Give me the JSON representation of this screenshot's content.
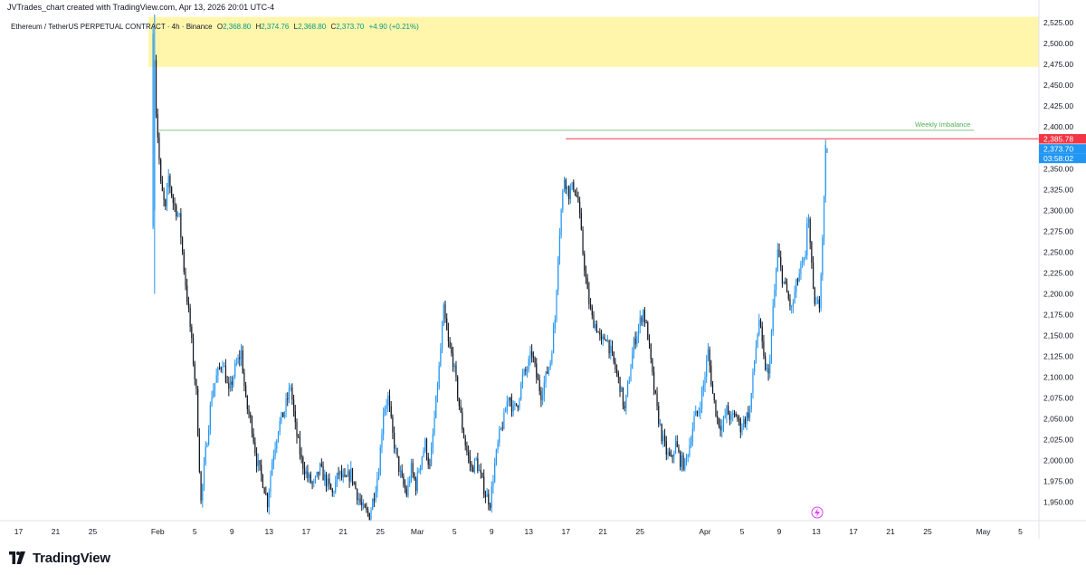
{
  "header": {
    "credit": "JVTrades_chart created with TradingView.com, Apr 13, 2026 20:01 UTC-4"
  },
  "legend": {
    "symbol": "Ethereum / TetherUS PERPETUAL CONTRACT · 4h · Binance",
    "open_label": "O",
    "open": "2,368.80",
    "high_label": "H",
    "high": "2,374.76",
    "low_label": "L",
    "low": "2,368.80",
    "close_label": "C",
    "close": "2,373.70",
    "change": "+4.90 (+0.21%)"
  },
  "footer": {
    "brand": "TradingView",
    "logo_icon": "tradingview-logo-icon",
    "lightning_icon": "lightning-icon"
  },
  "colors": {
    "up": "#2196F3",
    "down": "#131722",
    "zone": "#FFF59D",
    "imbalance": "#4CAF50",
    "level": "#F23645",
    "current": "#2196F3"
  },
  "chart_data": {
    "type": "candlestick",
    "price_axis": {
      "ylim": [
        1928,
        2537
      ],
      "ticks": [
        1950,
        1975,
        2000,
        2025,
        2050,
        2075,
        2100,
        2125,
        2150,
        2175,
        2200,
        2225,
        2250,
        2275,
        2300,
        2325,
        2350,
        2375,
        2400,
        2425,
        2450,
        2475,
        2500,
        2525
      ],
      "tick_labels": [
        "1,950.00",
        "1,975.00",
        "2,000.00",
        "2,025.00",
        "2,050.00",
        "2,075.00",
        "2,100.00",
        "2,125.00",
        "2,150.00",
        "2,175.00",
        "2,200.00",
        "2,225.00",
        "2,250.00",
        "2,275.00",
        "2,300.00",
        "2,325.00",
        "2,350.00",
        "2,375.00",
        "2,400.00",
        "2,425.00",
        "2,450.00",
        "2,475.00",
        "2,500.00",
        "2,525.00"
      ]
    },
    "time_axis": {
      "xlim": [
        "2026-01-15",
        "2026-05-07"
      ],
      "ticks": [
        {
          "date": "2026-01-17",
          "label": "17"
        },
        {
          "date": "2026-01-21",
          "label": "21"
        },
        {
          "date": "2026-01-25",
          "label": "25"
        },
        {
          "date": "2026-02-01",
          "label": "Feb"
        },
        {
          "date": "2026-02-05",
          "label": "5"
        },
        {
          "date": "2026-02-09",
          "label": "9"
        },
        {
          "date": "2026-02-13",
          "label": "13"
        },
        {
          "date": "2026-02-17",
          "label": "17"
        },
        {
          "date": "2026-02-21",
          "label": "21"
        },
        {
          "date": "2026-02-25",
          "label": "25"
        },
        {
          "date": "2026-03-01",
          "label": "Mar"
        },
        {
          "date": "2026-03-05",
          "label": "5"
        },
        {
          "date": "2026-03-09",
          "label": "9"
        },
        {
          "date": "2026-03-13",
          "label": "13"
        },
        {
          "date": "2026-03-17",
          "label": "17"
        },
        {
          "date": "2026-03-21",
          "label": "21"
        },
        {
          "date": "2026-03-25",
          "label": "25"
        },
        {
          "date": "2026-04-01",
          "label": "Apr"
        },
        {
          "date": "2026-04-05",
          "label": "5"
        },
        {
          "date": "2026-04-09",
          "label": "9"
        },
        {
          "date": "2026-04-13",
          "label": "13"
        },
        {
          "date": "2026-04-17",
          "label": "17"
        },
        {
          "date": "2026-04-21",
          "label": "21"
        },
        {
          "date": "2026-04-25",
          "label": "25"
        },
        {
          "date": "2026-05-01",
          "label": "May"
        },
        {
          "date": "2026-05-05",
          "label": "5"
        }
      ]
    },
    "first_candle": "2026-01-31T12:00",
    "candle_hours": 4,
    "price_path": [
      [
        "2026-01-31T12:00",
        2280
      ],
      [
        "2026-01-31T16:00",
        2520
      ],
      [
        "2026-02-01T00:00",
        2420
      ],
      [
        "2026-02-01T12:00",
        2330
      ],
      [
        "2026-02-02T00:00",
        2300
      ],
      [
        "2026-02-02T08:00",
        2340
      ],
      [
        "2026-02-02T20:00",
        2310
      ],
      [
        "2026-02-03T12:00",
        2290
      ],
      [
        "2026-02-04T00:00",
        2230
      ],
      [
        "2026-02-04T16:00",
        2160
      ],
      [
        "2026-02-05T08:00",
        2080
      ],
      [
        "2026-02-05T20:00",
        1950
      ],
      [
        "2026-02-06T08:00",
        2010
      ],
      [
        "2026-02-07T00:00",
        2080
      ],
      [
        "2026-02-07T12:00",
        2100
      ],
      [
        "2026-02-08T04:00",
        2120
      ],
      [
        "2026-02-08T20:00",
        2080
      ],
      [
        "2026-02-09T12:00",
        2110
      ],
      [
        "2026-02-10T04:00",
        2130
      ],
      [
        "2026-02-10T16:00",
        2070
      ],
      [
        "2026-02-11T08:00",
        2040
      ],
      [
        "2026-02-11T20:00",
        2000
      ],
      [
        "2026-02-12T12:00",
        1975
      ],
      [
        "2026-02-13T00:00",
        1950
      ],
      [
        "2026-02-13T12:00",
        2000
      ],
      [
        "2026-02-14T04:00",
        2040
      ],
      [
        "2026-02-14T20:00",
        2060
      ],
      [
        "2026-02-15T12:00",
        2090
      ],
      [
        "2026-02-16T00:00",
        2040
      ],
      [
        "2026-02-16T16:00",
        2000
      ],
      [
        "2026-02-17T08:00",
        1980
      ],
      [
        "2026-02-18T00:00",
        1970
      ],
      [
        "2026-02-18T16:00",
        1990
      ],
      [
        "2026-02-19T08:00",
        1975
      ],
      [
        "2026-02-20T00:00",
        1960
      ],
      [
        "2026-02-20T16:00",
        1985
      ],
      [
        "2026-02-21T08:00",
        1975
      ],
      [
        "2026-02-22T00:00",
        1985
      ],
      [
        "2026-02-22T16:00",
        1960
      ],
      [
        "2026-02-23T08:00",
        1940
      ],
      [
        "2026-02-24T00:00",
        1935
      ],
      [
        "2026-02-24T12:00",
        1960
      ],
      [
        "2026-02-25T00:00",
        1990
      ],
      [
        "2026-02-25T12:00",
        2060
      ],
      [
        "2026-02-26T00:00",
        2075
      ],
      [
        "2026-02-26T12:00",
        2030
      ],
      [
        "2026-02-27T00:00",
        2000
      ],
      [
        "2026-02-27T12:00",
        1975
      ],
      [
        "2026-02-28T00:00",
        1960
      ],
      [
        "2026-02-28T12:00",
        1990
      ],
      [
        "2026-03-01T00:00",
        1970
      ],
      [
        "2026-03-01T12:00",
        2000
      ],
      [
        "2026-03-02T00:00",
        2020
      ],
      [
        "2026-03-02T12:00",
        1990
      ],
      [
        "2026-03-03T00:00",
        2050
      ],
      [
        "2026-03-03T12:00",
        2110
      ],
      [
        "2026-03-04T00:00",
        2180
      ],
      [
        "2026-03-04T12:00",
        2140
      ],
      [
        "2026-03-05T00:00",
        2120
      ],
      [
        "2026-03-05T12:00",
        2080
      ],
      [
        "2026-03-06T00:00",
        2040
      ],
      [
        "2026-03-06T12:00",
        2010
      ],
      [
        "2026-03-07T00:00",
        1990
      ],
      [
        "2026-03-07T12:00",
        2000
      ],
      [
        "2026-03-08T00:00",
        1980
      ],
      [
        "2026-03-08T12:00",
        1960
      ],
      [
        "2026-03-09T00:00",
        1950
      ],
      [
        "2026-03-09T12:00",
        1995
      ],
      [
        "2026-03-10T00:00",
        2030
      ],
      [
        "2026-03-10T12:00",
        2050
      ],
      [
        "2026-03-11T00:00",
        2080
      ],
      [
        "2026-03-11T12:00",
        2060
      ],
      [
        "2026-03-12T00:00",
        2070
      ],
      [
        "2026-03-12T12:00",
        2100
      ],
      [
        "2026-03-13T00:00",
        2110
      ],
      [
        "2026-03-13T12:00",
        2130
      ],
      [
        "2026-03-14T00:00",
        2100
      ],
      [
        "2026-03-14T12:00",
        2080
      ],
      [
        "2026-03-15T00:00",
        2100
      ],
      [
        "2026-03-15T12:00",
        2120
      ],
      [
        "2026-03-16T00:00",
        2170
      ],
      [
        "2026-03-16T08:00",
        2250
      ],
      [
        "2026-03-16T16:00",
        2300
      ],
      [
        "2026-03-17T00:00",
        2340
      ],
      [
        "2026-03-17T12:00",
        2320
      ],
      [
        "2026-03-18T00:00",
        2330
      ],
      [
        "2026-03-18T12:00",
        2310
      ],
      [
        "2026-03-19T00:00",
        2250
      ],
      [
        "2026-03-19T12:00",
        2200
      ],
      [
        "2026-03-20T00:00",
        2170
      ],
      [
        "2026-03-20T12:00",
        2160
      ],
      [
        "2026-03-21T00:00",
        2140
      ],
      [
        "2026-03-21T12:00",
        2150
      ],
      [
        "2026-03-22T00:00",
        2130
      ],
      [
        "2026-03-22T12:00",
        2110
      ],
      [
        "2026-03-23T00:00",
        2090
      ],
      [
        "2026-03-23T12:00",
        2060
      ],
      [
        "2026-03-24T00:00",
        2100
      ],
      [
        "2026-03-24T12:00",
        2140
      ],
      [
        "2026-03-25T00:00",
        2160
      ],
      [
        "2026-03-25T12:00",
        2180
      ],
      [
        "2026-03-26T00:00",
        2150
      ],
      [
        "2026-03-26T12:00",
        2100
      ],
      [
        "2026-03-27T00:00",
        2060
      ],
      [
        "2026-03-27T12:00",
        2030
      ],
      [
        "2026-03-28T00:00",
        2010
      ],
      [
        "2026-03-28T12:00",
        2000
      ],
      [
        "2026-03-29T00:00",
        2020
      ],
      [
        "2026-03-29T12:00",
        2000
      ],
      [
        "2026-03-30T00:00",
        1995
      ],
      [
        "2026-03-30T12:00",
        2020
      ],
      [
        "2026-03-31T00:00",
        2050
      ],
      [
        "2026-03-31T12:00",
        2060
      ],
      [
        "2026-04-01T00:00",
        2090
      ],
      [
        "2026-04-01T12:00",
        2130
      ],
      [
        "2026-04-02T00:00",
        2080
      ],
      [
        "2026-04-02T12:00",
        2050
      ],
      [
        "2026-04-03T00:00",
        2040
      ],
      [
        "2026-04-03T12:00",
        2060
      ],
      [
        "2026-04-04T00:00",
        2050
      ],
      [
        "2026-04-04T12:00",
        2055
      ],
      [
        "2026-04-05T00:00",
        2040
      ],
      [
        "2026-04-05T12:00",
        2050
      ],
      [
        "2026-04-06T00:00",
        2060
      ],
      [
        "2026-04-06T12:00",
        2120
      ],
      [
        "2026-04-07T00:00",
        2170
      ],
      [
        "2026-04-07T12:00",
        2120
      ],
      [
        "2026-04-08T00:00",
        2100
      ],
      [
        "2026-04-08T12:00",
        2180
      ],
      [
        "2026-04-09T00:00",
        2250
      ],
      [
        "2026-04-09T12:00",
        2220
      ],
      [
        "2026-04-10T00:00",
        2200
      ],
      [
        "2026-04-10T12:00",
        2180
      ],
      [
        "2026-04-11T00:00",
        2210
      ],
      [
        "2026-04-11T12:00",
        2230
      ],
      [
        "2026-04-12T00:00",
        2240
      ],
      [
        "2026-04-12T06:00",
        2310
      ],
      [
        "2026-04-12T12:00",
        2260
      ],
      [
        "2026-04-12T20:00",
        2200
      ],
      [
        "2026-04-13T04:00",
        2185
      ],
      [
        "2026-04-13T12:00",
        2190
      ],
      [
        "2026-04-13T20:00",
        2270
      ],
      [
        "2026-04-14T04:00",
        2373.7
      ]
    ],
    "marked_candles": [
      {
        "t": "2026-01-31T16:00",
        "o": 2300,
        "h": 2535,
        "l": 2200,
        "c": 2480
      },
      {
        "t": "2026-04-14T04:00",
        "o": 2368.8,
        "h": 2374.76,
        "l": 2368.8,
        "c": 2373.7
      }
    ],
    "zones": [
      {
        "type": "rectangle",
        "from": "2026-01-31T00:00",
        "to": "2026-05-07",
        "low": 2472,
        "high": 2532
      }
    ],
    "lines": [
      {
        "name": "weekly-imbalance",
        "label": "Weekly Imbalance",
        "y": 2396,
        "from": "2026-02-01T00:00",
        "to": "2026-04-30"
      },
      {
        "name": "swing-high",
        "label": "",
        "y": 2385.78,
        "from": "2026-03-17T00:00",
        "to": "2026-05-07"
      }
    ],
    "price_labels": [
      {
        "name": "swing-high-price",
        "text": "2,385.78",
        "y": 2385.78,
        "color": "#F23645"
      },
      {
        "name": "last-price",
        "text": "2,373.70",
        "y": 2373.7,
        "color": "#2196F3"
      },
      {
        "name": "countdown",
        "text": "03:58:02",
        "y": 2362.5,
        "color": "#2196F3"
      }
    ]
  }
}
